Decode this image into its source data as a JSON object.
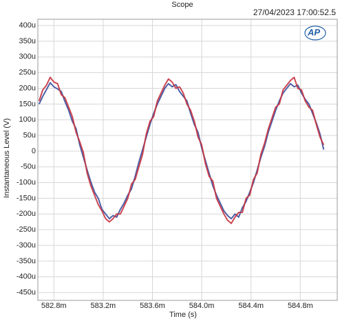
{
  "chart_data": {
    "type": "line",
    "title": "Scope",
    "timestamp": "27/04/2023 17:00:52.5",
    "logo": "AP",
    "xlabel": "Time (s)",
    "ylabel": "Instantaneous Level (V)",
    "grid": true,
    "x": [
      0.58268,
      0.58271,
      0.58274,
      0.58277,
      0.5828,
      0.58283,
      0.58286,
      0.58289,
      0.58292,
      0.58295,
      0.58298,
      0.58301,
      0.58304,
      0.58307,
      0.5831,
      0.58313,
      0.58316,
      0.58319,
      0.58322,
      0.58325,
      0.58328,
      0.58331,
      0.58334,
      0.58337,
      0.5834,
      0.58343,
      0.58346,
      0.58349,
      0.58352,
      0.58355,
      0.58358,
      0.58361,
      0.58364,
      0.58367,
      0.5837,
      0.58373,
      0.58376,
      0.58379,
      0.58382,
      0.58385,
      0.58388,
      0.58391,
      0.58394,
      0.58397,
      0.584,
      0.58403,
      0.58406,
      0.58409,
      0.58412,
      0.58415,
      0.58418,
      0.58421,
      0.58424,
      0.58427,
      0.5843,
      0.58433,
      0.58436,
      0.58439,
      0.58442,
      0.58445,
      0.58448,
      0.58451,
      0.58454,
      0.58457,
      0.5846,
      0.58463,
      0.58466,
      0.58469,
      0.58472,
      0.58475,
      0.58478,
      0.58481,
      0.58484,
      0.58487,
      0.5849,
      0.58493,
      0.58496,
      0.58499
    ],
    "series": [
      {
        "color": "#3b4f9c",
        "values": [
          0.00015,
          0.000175,
          0.000196,
          0.000218,
          0.000205,
          0.000198,
          0.00019,
          0.000158,
          0.00013,
          9.5e-05,
          7.2e-05,
          2e-05,
          -2e-05,
          -6e-05,
          -9.8e-05,
          -0.00013,
          -0.00015,
          -0.000185,
          -0.0002,
          -0.000215,
          -0.000205,
          -0.00021,
          -0.000185,
          -0.000165,
          -0.00014,
          -0.00012,
          -8e-05,
          -3.5e-05,
          5e-06,
          4.5e-05,
          8.5e-05,
          0.00012,
          0.00015,
          0.000175,
          0.0002,
          0.000215,
          0.000205,
          0.000212,
          0.00019,
          0.000175,
          0.00016,
          0.00012,
          8.5e-05,
          6e-05,
          1e-05,
          -3e-05,
          -7e-05,
          -0.00011,
          -0.00014,
          -0.000165,
          -0.00019,
          -0.000205,
          -0.000215,
          -0.0002,
          -0.00021,
          -0.00018,
          -0.00016,
          -0.00013,
          -0.0001,
          -6e-05,
          -2e-05,
          1.5e-05,
          6e-05,
          9.5e-05,
          0.00013,
          0.00016,
          0.000185,
          0.0002,
          0.000215,
          0.000205,
          0.00021,
          0.000185,
          0.000165,
          0.00015,
          0.00012,
          9e-05,
          5.5e-05,
          5e-06
        ]
      },
      {
        "color": "#c8323e",
        "values": [
          0.00016,
          0.000195,
          0.00021,
          0.000235,
          0.00022,
          0.000215,
          0.00018,
          0.00017,
          0.00014,
          0.00011,
          6e-05,
          3e-05,
          -5e-06,
          -7e-05,
          -0.00011,
          -0.00014,
          -0.00017,
          -0.00019,
          -0.000215,
          -0.000225,
          -0.000215,
          -0.0002,
          -0.0002,
          -0.000175,
          -0.00015,
          -0.000105,
          -9e-05,
          -5e-05,
          -1e-05,
          5.5e-05,
          9.5e-05,
          0.00011,
          0.00016,
          0.000185,
          0.00021,
          0.00023,
          0.00022,
          0.0002,
          0.000205,
          0.000185,
          0.00015,
          0.00013,
          9.5e-05,
          4.5e-05,
          2e-05,
          -4e-05,
          -8e-05,
          -9.5e-05,
          -0.00015,
          -0.000175,
          -0.0002,
          -0.00022,
          -0.00023,
          -0.00021,
          -0.000195,
          -0.000195,
          -0.00015,
          -0.00014,
          -9e-05,
          -7e-05,
          -1e-05,
          2.5e-05,
          7e-05,
          0.000105,
          0.00014,
          0.00015,
          0.000195,
          0.00021,
          0.000225,
          0.000235,
          0.0002,
          0.000195,
          0.00016,
          0.00014,
          0.00013,
          8.5e-05,
          4.5e-05,
          2e-05
        ]
      }
    ],
    "xlim": [
      0.58267,
      0.5851
    ],
    "xticks": [
      {
        "value": 0.5828,
        "label": "582.8m"
      },
      {
        "value": 0.5832,
        "label": "583.2m"
      },
      {
        "value": 0.5836,
        "label": "583.6m"
      },
      {
        "value": 0.584,
        "label": "584.0m"
      },
      {
        "value": 0.5844,
        "label": "584.4m"
      },
      {
        "value": 0.5848,
        "label": "584.8m"
      }
    ],
    "ylim": [
      -0.000475,
      0.00042
    ],
    "yticks": [
      {
        "value": 0.0004,
        "label": "400u"
      },
      {
        "value": 0.00035,
        "label": "350u"
      },
      {
        "value": 0.0003,
        "label": "300u"
      },
      {
        "value": 0.00025,
        "label": "250u"
      },
      {
        "value": 0.0002,
        "label": "200u"
      },
      {
        "value": 0.00015,
        "label": "150u"
      },
      {
        "value": 0.0001,
        "label": "100u"
      },
      {
        "value": 5e-05,
        "label": "50u"
      },
      0,
      {
        "value": -5e-05,
        "label": "-50u"
      },
      {
        "value": -0.0001,
        "label": "-100u"
      },
      {
        "value": -0.00015,
        "label": "-150u"
      },
      {
        "value": -0.0002,
        "label": "-200u"
      },
      {
        "value": -0.00025,
        "label": "-250u"
      },
      {
        "value": -0.0003,
        "label": "-300u"
      },
      {
        "value": -0.00035,
        "label": "-350u"
      },
      {
        "value": -0.0004,
        "label": "-400u"
      },
      {
        "value": -0.00045,
        "label": "-450u"
      }
    ]
  }
}
